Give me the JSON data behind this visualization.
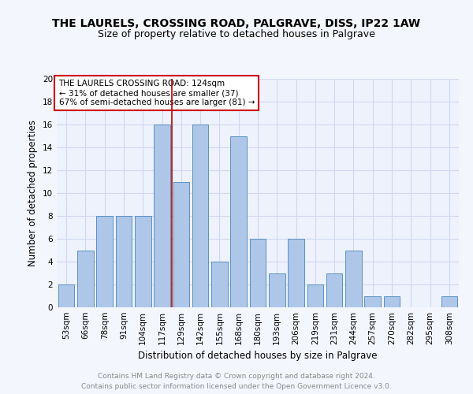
{
  "title": "THE LAURELS, CROSSING ROAD, PALGRAVE, DISS, IP22 1AW",
  "subtitle": "Size of property relative to detached houses in Palgrave",
  "xlabel": "Distribution of detached houses by size in Palgrave",
  "ylabel": "Number of detached properties",
  "categories": [
    "53sqm",
    "66sqm",
    "78sqm",
    "91sqm",
    "104sqm",
    "117sqm",
    "129sqm",
    "142sqm",
    "155sqm",
    "168sqm",
    "180sqm",
    "193sqm",
    "206sqm",
    "219sqm",
    "231sqm",
    "244sqm",
    "257sqm",
    "270sqm",
    "282sqm",
    "295sqm",
    "308sqm"
  ],
  "values": [
    2,
    5,
    8,
    8,
    8,
    16,
    11,
    16,
    4,
    15,
    6,
    3,
    6,
    2,
    3,
    5,
    1,
    1,
    0,
    0,
    1
  ],
  "bar_color": "#aec6e8",
  "bar_edge_color": "#5a90c0",
  "background_color": "#eef2fc",
  "grid_color": "#d0d8f0",
  "fig_background": "#f4f6fe",
  "vline_x": 5.5,
  "vline_color": "#bb0000",
  "annotation_title": "THE LAURELS CROSSING ROAD: 124sqm",
  "annotation_line1": "← 31% of detached houses are smaller (37)",
  "annotation_line2": "67% of semi-detached houses are larger (81) →",
  "annotation_box_color": "#cc0000",
  "ylim": [
    0,
    20
  ],
  "yticks": [
    0,
    2,
    4,
    6,
    8,
    10,
    12,
    14,
    16,
    18,
    20
  ],
  "footer_line1": "Contains HM Land Registry data © Crown copyright and database right 2024.",
  "footer_line2": "Contains public sector information licensed under the Open Government Licence v3.0.",
  "title_fontsize": 10,
  "subtitle_fontsize": 9,
  "axis_label_fontsize": 8.5,
  "tick_fontsize": 7.5,
  "annotation_fontsize": 7.5,
  "footer_fontsize": 6.5
}
